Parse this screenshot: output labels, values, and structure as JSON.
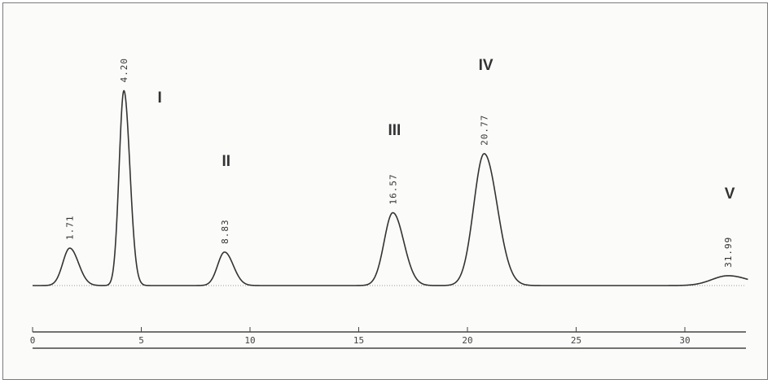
{
  "chart_data": {
    "type": "line",
    "title": "",
    "xlabel": "",
    "ylabel": "",
    "xlim": [
      0,
      33
    ],
    "ylim": [
      0,
      1
    ],
    "x_ticks": [
      {
        "value": 0,
        "label": "0"
      },
      {
        "value": 5,
        "label": "5"
      },
      {
        "value": 10,
        "label": "10"
      },
      {
        "value": 15,
        "label": "15"
      },
      {
        "value": 20,
        "label": "20"
      },
      {
        "value": 25,
        "label": "25"
      },
      {
        "value": 30,
        "label": "30"
      }
    ],
    "peaks": [
      {
        "retention_time": 1.71,
        "label": "1.71",
        "roman": "",
        "height": 0.19,
        "width": 0.32
      },
      {
        "retention_time": 4.2,
        "label": "4.20",
        "roman": "I",
        "height": 0.99,
        "width": 0.22
      },
      {
        "retention_time": 8.83,
        "label": "8.83",
        "roman": "II",
        "height": 0.17,
        "width": 0.32
      },
      {
        "retention_time": 16.57,
        "label": "16.57",
        "roman": "III",
        "height": 0.37,
        "width": 0.4
      },
      {
        "retention_time": 20.77,
        "label": "20.77",
        "roman": "IV",
        "height": 0.67,
        "width": 0.48
      },
      {
        "retention_time": 31.99,
        "label": "31.99",
        "roman": "V",
        "height": 0.05,
        "width": 0.75
      }
    ],
    "colors": {
      "trace": "#333333",
      "baseline": "#9a9a9a",
      "frame": "#7a7a7a"
    },
    "grid": false
  }
}
